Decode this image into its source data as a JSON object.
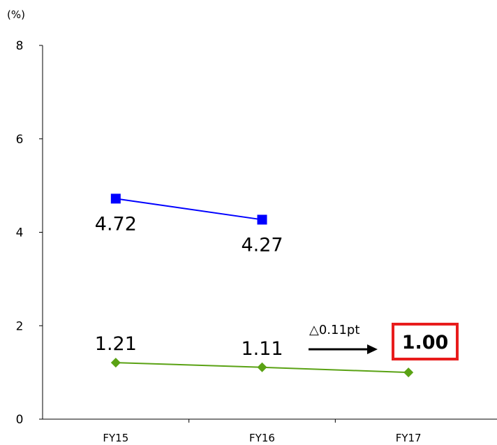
{
  "chart_data": {
    "type": "line",
    "unit_label": "(%)",
    "categories": [
      "FY15",
      "FY16",
      "FY17"
    ],
    "ylim": [
      0,
      8
    ],
    "yticks": [
      0,
      2,
      4,
      6,
      8
    ],
    "grid": false,
    "series": [
      {
        "values": [
          4.72,
          4.27,
          null
        ],
        "labels": [
          "4.72",
          "4.27",
          ""
        ],
        "color": "#0000ff",
        "marker": "square"
      },
      {
        "values": [
          1.21,
          1.11,
          1.0
        ],
        "labels": [
          "1.21",
          "1.11",
          ""
        ],
        "color": "#5aa214",
        "marker": "diamond"
      }
    ],
    "annotation": {
      "text": "△0.11pt",
      "highlight_value": "1.00",
      "highlight_color": "#e81c1c"
    }
  }
}
